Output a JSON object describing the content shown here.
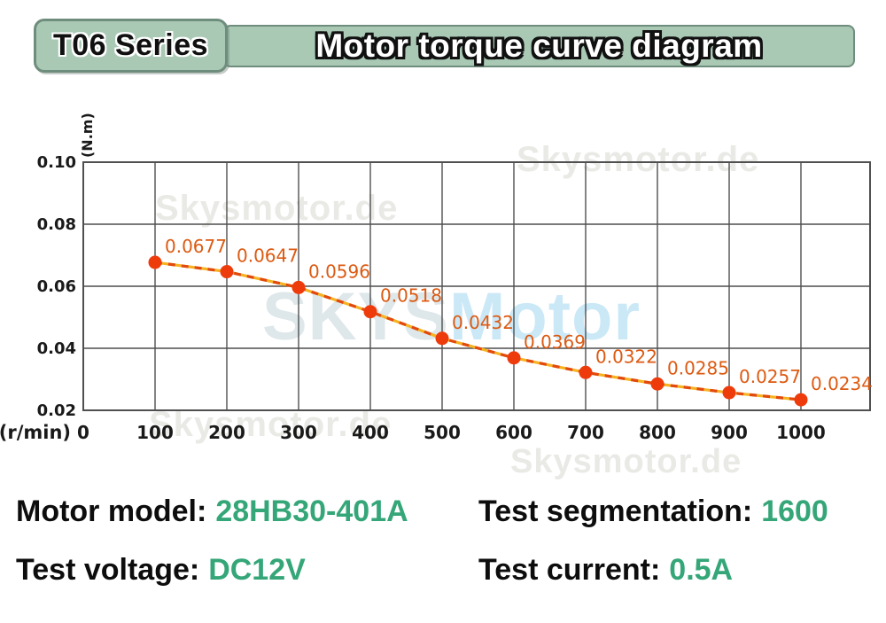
{
  "header": {
    "series_badge": "T06 Series",
    "title": "Motor torque curve diagram",
    "badge_bg": "#a9c9b5",
    "badge_border": "#6f8d7c"
  },
  "watermarks": {
    "small": "Skysmotor.de",
    "large_part1": "SKYS",
    "large_part2": "Motor",
    "small_color": "#cfcfc8",
    "large_color_1": "#d9e3e7",
    "large_color_2": "#c3e5f6"
  },
  "chart_data": {
    "type": "line",
    "x": [
      100,
      200,
      300,
      400,
      500,
      600,
      700,
      800,
      900,
      1000
    ],
    "values": [
      0.0677,
      0.0647,
      0.0596,
      0.0518,
      0.0432,
      0.0369,
      0.0322,
      0.0285,
      0.0257,
      0.0234
    ],
    "point_labels": [
      "0.0677",
      "0.0647",
      "0.0596",
      "0.0518",
      "0.0432",
      "0.0369",
      "0.0322",
      "0.0285",
      "0.0257",
      "0.0234"
    ],
    "title": "Motor torque curve diagram",
    "xlabel": "(r/min)",
    "ylabel": "(N.m)",
    "x_ticks": [
      "0",
      "100",
      "200",
      "300",
      "400",
      "500",
      "600",
      "700",
      "800",
      "900",
      "1000"
    ],
    "y_ticks": [
      "0.02",
      "0.04",
      "0.06",
      "0.08",
      "0.10"
    ],
    "xlim": [
      0,
      1100
    ],
    "ylim": [
      0.02,
      0.1
    ],
    "grid": true,
    "legend": "none",
    "line_color": "#f6b321",
    "line_dash_color": "#e2490e",
    "marker_color": "#ee3b0c",
    "label_color": "#dc5a12",
    "grid_color": "#4f4f4f",
    "axis_text_color": "#1a1a1a"
  },
  "specs": {
    "motor_model_label": "Motor model:",
    "motor_model_value": "28HB30-401A",
    "test_segmentation_label": "Test segmentation:",
    "test_segmentation_value": "1600",
    "test_voltage_label": "Test voltage:",
    "test_voltage_value": "DC12V",
    "test_current_label": "Test current:",
    "test_current_value": "0.5A",
    "value_color": "#35a678"
  }
}
